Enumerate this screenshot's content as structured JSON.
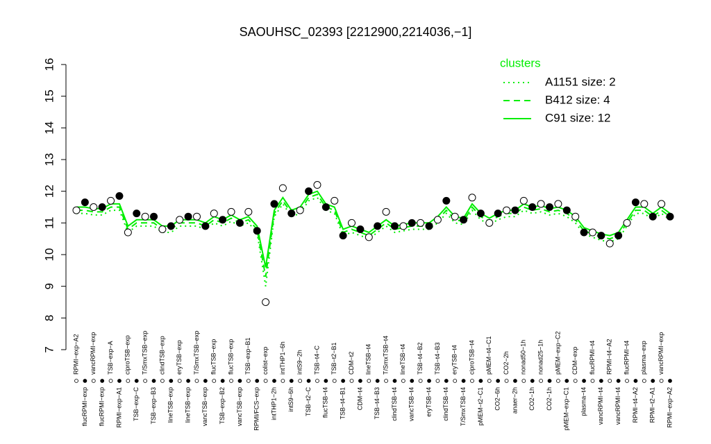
{
  "chart_data": {
    "type": "line",
    "title": "SAOUHSC_02393 [2212900,2214036,−1]",
    "categories": [
      "RPMI−exp−A2",
      "flucRPMI−exp",
      "vancRPMI−exp",
      "flucRPMI−exp",
      "TSB−exp−A",
      "RPMI−exp−A1",
      "ciproTSB−exp",
      "TSB−exp−C",
      "T/SmxTSB−exp",
      "TSB−exp−B3",
      "clindTSB−exp",
      "lineTSB−exp",
      "eryTSB−exp",
      "lineTSB−exp",
      "T/SmxTSB−exp",
      "vancTSB−exp",
      "flucTSB−exp",
      "TSB−exp−B2",
      "flucTSB−exp",
      "vancTSB−exp",
      "TSB−exp−B1",
      "RPMI/FCS−exp",
      "colist−exp",
      "intTHP1−2h",
      "intTHP1−6h",
      "intS9−6h",
      "intS9−2h",
      "TSB−t2−C",
      "TSB−t4−C",
      "flucTSB−t4",
      "TSB−t2−B1",
      "TSB−t4−B1",
      "CDM−t2",
      "CDM−t4",
      "lineTSB−t4",
      "TSB−t4−B3",
      "T/SmxTSB−t4",
      "clindTSB−t4",
      "lineTSB−t4",
      "vancTSB−t4",
      "TSB−t4−B2",
      "eryTSB−t4",
      "TSB−t4−B3",
      "clindTSB−t4",
      "eryTSB−t4",
      "T/SmxTSB−t4",
      "ciproTSB−t4",
      "pMEM−t2−C1",
      "pMEM−t4−C1",
      "CO2−6h",
      "CO2−2h",
      "anaer−2h",
      "nonad50−1h",
      "CO2−1h",
      "nonad25−1h",
      "CO2−1h",
      "pMEM−exp−C2",
      "pMEM−exp−C1",
      "CDM−exp",
      "plasma−t4",
      "flucRPMI−t4",
      "vancRPMI−t4",
      "RPMI−t4−A2",
      "vancRPMI−t4",
      "flucRPMI−t4",
      "RPMI−t4−A2",
      "plasma−exp",
      "RPMI−t2−A1",
      "vancRPMI−exp",
      "RPMI−exp−A2"
    ],
    "values": [
      11.4,
      11.65,
      11.5,
      11.5,
      11.7,
      11.85,
      10.7,
      11.3,
      11.2,
      11.2,
      10.8,
      10.9,
      11.1,
      11.2,
      11.2,
      10.9,
      11.3,
      11.1,
      11.35,
      11.0,
      11.35,
      10.75,
      8.5,
      11.6,
      12.1,
      11.3,
      11.4,
      12.0,
      12.2,
      11.5,
      11.7,
      10.6,
      11.0,
      10.8,
      10.55,
      10.9,
      11.35,
      10.9,
      10.9,
      11.0,
      11.0,
      10.9,
      11.1,
      11.7,
      11.2,
      11.1,
      11.8,
      11.3,
      11.0,
      11.3,
      11.4,
      11.4,
      11.7,
      11.5,
      11.6,
      11.5,
      11.6,
      11.4,
      11.2,
      10.7,
      10.7,
      10.6,
      10.35,
      10.6,
      11.0,
      11.65,
      11.6,
      11.2,
      11.6,
      11.2
    ],
    "legend_title": "clusters",
    "series": [
      {
        "name": "A1151 size: 2",
        "color": "#00ee00",
        "style": "dotted",
        "values": [
          11.3,
          11.3,
          11.25,
          11.25,
          11.4,
          11.4,
          10.7,
          10.9,
          10.9,
          10.9,
          10.7,
          10.7,
          10.9,
          10.9,
          10.9,
          10.8,
          11.0,
          10.9,
          11.05,
          10.9,
          11.0,
          10.7,
          9.0,
          11.2,
          11.6,
          11.2,
          11.3,
          11.7,
          11.8,
          11.4,
          11.3,
          10.6,
          10.7,
          10.6,
          10.5,
          10.7,
          10.9,
          10.7,
          10.75,
          10.8,
          10.8,
          10.8,
          11.0,
          11.3,
          11.0,
          10.95,
          11.4,
          11.1,
          10.95,
          11.1,
          11.2,
          11.2,
          11.4,
          11.3,
          11.35,
          11.25,
          11.3,
          11.2,
          11.0,
          10.65,
          10.55,
          10.45,
          10.4,
          10.5,
          10.9,
          11.3,
          11.3,
          11.1,
          11.3,
          11.1
        ]
      },
      {
        "name": "B412 size: 4",
        "color": "#00ee00",
        "style": "dashed",
        "values": [
          11.4,
          11.4,
          11.35,
          11.35,
          11.5,
          11.5,
          10.8,
          11.0,
          11.0,
          11.0,
          10.8,
          10.8,
          11.0,
          11.0,
          11.0,
          10.9,
          11.1,
          11.0,
          11.15,
          11.0,
          11.1,
          10.8,
          9.3,
          11.3,
          11.7,
          11.3,
          11.4,
          11.8,
          11.9,
          11.5,
          11.4,
          10.7,
          10.8,
          10.7,
          10.6,
          10.8,
          11.0,
          10.8,
          10.85,
          10.9,
          10.9,
          10.9,
          11.1,
          11.4,
          11.1,
          11.05,
          11.5,
          11.2,
          11.05,
          11.2,
          11.3,
          11.3,
          11.5,
          11.4,
          11.45,
          11.35,
          11.4,
          11.3,
          11.1,
          10.75,
          10.65,
          10.55,
          10.5,
          10.6,
          11.0,
          11.4,
          11.4,
          11.2,
          11.4,
          11.2
        ]
      },
      {
        "name": "C91 size: 12",
        "color": "#00ee00",
        "style": "solid",
        "values": [
          11.5,
          11.5,
          11.45,
          11.45,
          11.6,
          11.6,
          10.9,
          11.1,
          11.1,
          11.1,
          10.9,
          10.9,
          11.1,
          11.1,
          11.1,
          11.0,
          11.2,
          11.1,
          11.25,
          11.1,
          11.2,
          10.9,
          9.6,
          11.4,
          11.8,
          11.4,
          11.5,
          11.9,
          12.0,
          11.6,
          11.5,
          10.8,
          10.9,
          10.8,
          10.7,
          10.9,
          11.1,
          10.9,
          10.95,
          11.0,
          11.0,
          11.0,
          11.2,
          11.5,
          11.2,
          11.15,
          11.6,
          11.3,
          11.15,
          11.3,
          11.4,
          11.4,
          11.6,
          11.5,
          11.55,
          11.45,
          11.5,
          11.4,
          11.2,
          10.85,
          10.75,
          10.65,
          10.6,
          10.7,
          11.1,
          11.5,
          11.5,
          11.3,
          11.5,
          11.3
        ]
      }
    ],
    "ylim": [
      7,
      16
    ],
    "yticks": [
      7,
      8,
      9,
      10,
      11,
      12,
      13,
      14,
      15,
      16
    ]
  }
}
